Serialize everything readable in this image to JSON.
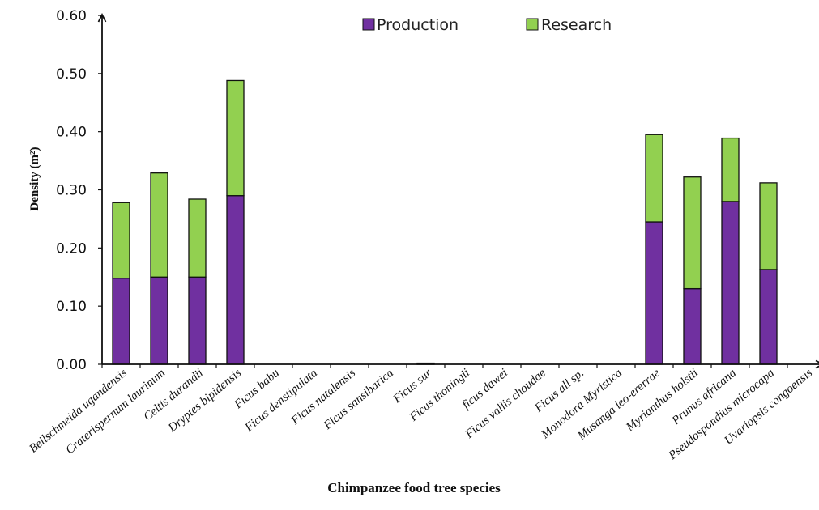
{
  "chart_data": {
    "type": "bar",
    "stacked": true,
    "title": "",
    "xlabel": "Chimpanzee food tree species",
    "ylabel": "Density (m²)",
    "ylim": [
      0,
      0.6
    ],
    "yticks": [
      "0.00",
      "0.10",
      "0.20",
      "0.30",
      "0.40",
      "0.50",
      "0.60"
    ],
    "grid": false,
    "legend_position": "top-center",
    "categories": [
      "Beilschmeida ugandensis",
      "Craterispernum laurinum",
      "Celtis durandii",
      "Dryptes bipidensis",
      "Ficus babu",
      "Ficus denstipulata",
      "Ficus natalensis",
      "Ficus sansibarica",
      "Ficus sur",
      "Ficus thoningii",
      "ficus dawei",
      "Ficus vallis choudae",
      "Ficus all sp.",
      "Monodora Myristica",
      "Musanga leo-ererrae",
      "Myrianthus holstii",
      "Prunus africana",
      "Pseudospondius microcapa",
      "Uvariopsis congoensis"
    ],
    "series": [
      {
        "name": "Production",
        "color": "#7030a0",
        "values": [
          0.148,
          0.15,
          0.15,
          0.29,
          0,
          0,
          0,
          0,
          0.001,
          0,
          0,
          0,
          0,
          0,
          0.245,
          0.13,
          0.28,
          0.163,
          0
        ]
      },
      {
        "name": "Research",
        "color": "#92d050",
        "values": [
          0.13,
          0.179,
          0.134,
          0.198,
          0,
          0,
          0,
          0,
          0.001,
          0,
          0,
          0,
          0,
          0,
          0.15,
          0.192,
          0.109,
          0.149,
          0
        ]
      }
    ]
  }
}
